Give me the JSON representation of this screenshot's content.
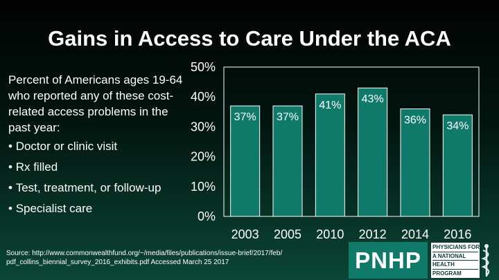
{
  "title": "Gains in Access to Care Under the ACA",
  "description": "Percent of Americans ages 19-64 who reported any of these cost-related access problems in the past year:",
  "bullets": [
    "Doctor or clinic visit",
    "Rx filled",
    "Test, treatment, or follow-up",
    "Specialist care"
  ],
  "source": "Source: http://www.commonwealthfund.org/~/media/files/publications/issue-brief/2017/feb/ pdf_collins_biennial_survey_2016_exhibits.pdf Accessed March 25 2017",
  "logo": {
    "letters": "PNHP",
    "name_lines": [
      "PHYSICIANS FOR",
      "A NATIONAL",
      "HEALTH",
      "PROGRAM"
    ],
    "colors": {
      "teal": "#0f7a6a",
      "dark": "#0d3d33"
    }
  },
  "colors": {
    "bar": "#0f7a6a",
    "bar_border": "#ffffff",
    "plot_border": "#ffffff",
    "text": "#ffffff"
  },
  "chart_data": {
    "type": "bar",
    "categories": [
      "2003",
      "2005",
      "2010",
      "2012",
      "2014",
      "2016"
    ],
    "values": [
      37,
      37,
      41,
      43,
      36,
      34
    ],
    "data_labels": [
      "37%",
      "37%",
      "41%",
      "43%",
      "36%",
      "34%"
    ],
    "y_ticks": [
      "0%",
      "10%",
      "20%",
      "30%",
      "40%",
      "50%"
    ],
    "ylim": [
      0,
      50
    ],
    "title": "",
    "xlabel": "",
    "ylabel": "",
    "grid": false,
    "legend": "none"
  }
}
